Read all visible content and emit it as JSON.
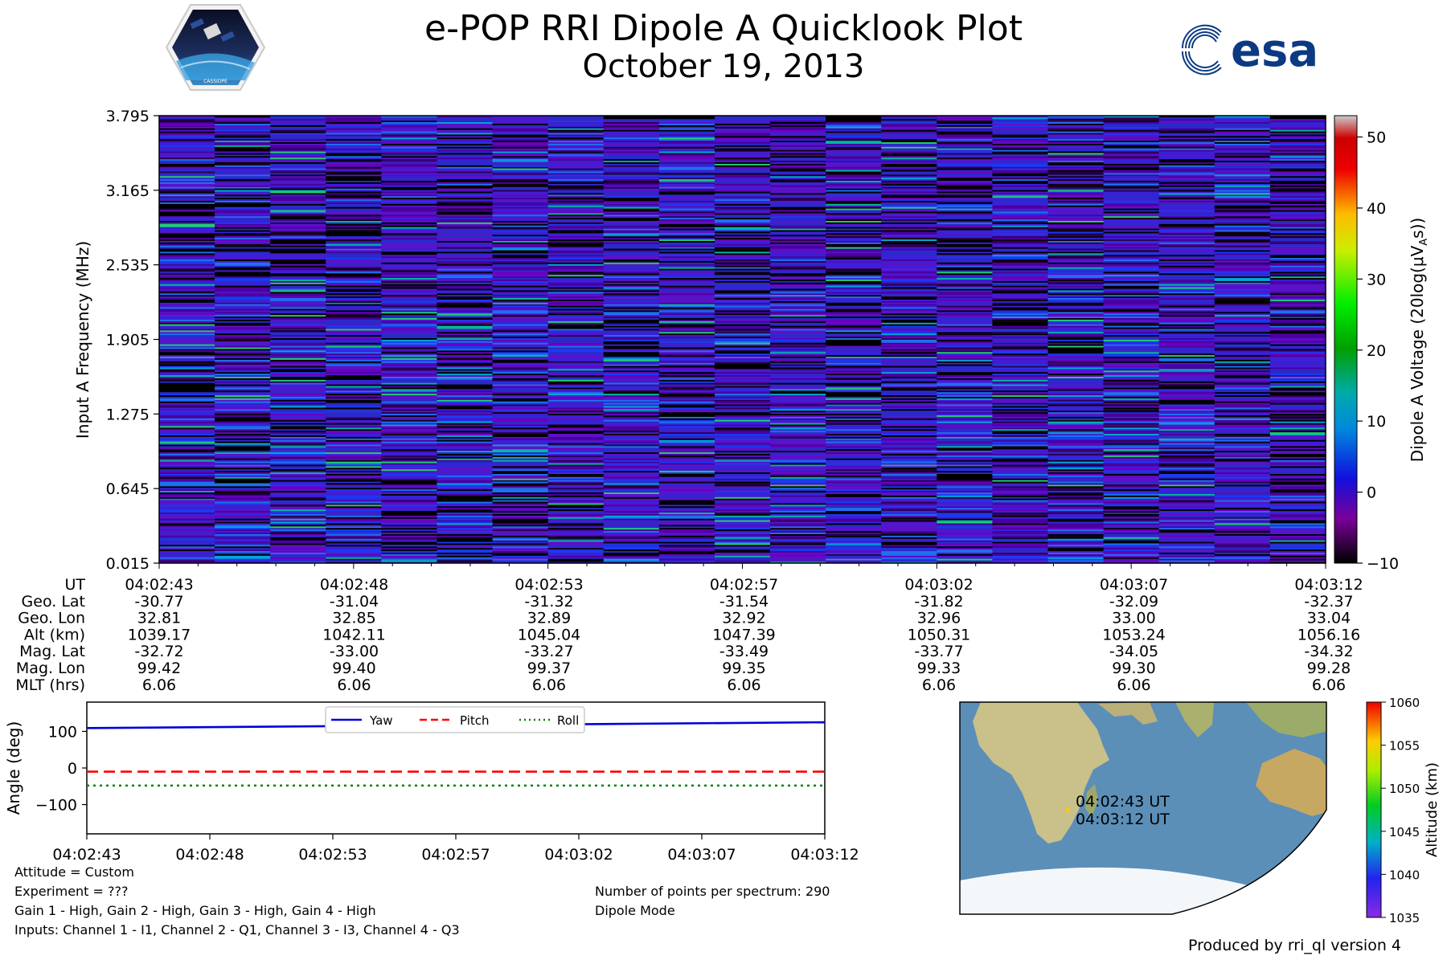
{
  "header": {
    "title": "e-POP RRI Dipole A Quicklook Plot",
    "date": "October 19, 2013",
    "left_logo_text": "CASSIOPE",
    "right_logo_text": "esa"
  },
  "chart_data": [
    {
      "type": "heatmap",
      "ylabel": "Input A Frequency (MHz)",
      "yticks": [
        "0.015",
        "0.645",
        "1.275",
        "1.905",
        "2.535",
        "3.165",
        "3.795"
      ],
      "ylim": [
        0.015,
        3.795
      ],
      "points_per_spectrum": 290,
      "colorbar": {
        "label": "Dipole A Voltage (20log(μV",
        "label_sub": "A",
        "label_end": "s))",
        "ticks": [
          "−10",
          "0",
          "10",
          "20",
          "30",
          "40",
          "50"
        ],
        "range": [
          -10,
          53
        ],
        "colormap": "nipy_spectral"
      }
    },
    {
      "type": "table",
      "row_labels": [
        "UT",
        "Geo. Lat",
        "Geo. Lon",
        "Alt (km)",
        "Mag. Lat",
        "Mag. Lon",
        "MLT (hrs)"
      ],
      "columns": [
        [
          "04:02:43",
          "-30.77",
          "32.81",
          "1039.17",
          "-32.72",
          "99.42",
          "6.06"
        ],
        [
          "04:02:48",
          "-31.04",
          "32.85",
          "1042.11",
          "-33.00",
          "99.40",
          "6.06"
        ],
        [
          "04:02:53",
          "-31.32",
          "32.89",
          "1045.04",
          "-33.27",
          "99.37",
          "6.06"
        ],
        [
          "04:02:57",
          "-31.54",
          "32.92",
          "1047.39",
          "-33.49",
          "99.35",
          "6.06"
        ],
        [
          "04:03:02",
          "-31.82",
          "32.96",
          "1050.31",
          "-33.77",
          "99.33",
          "6.06"
        ],
        [
          "04:03:07",
          "-32.09",
          "33.00",
          "1053.24",
          "-34.05",
          "99.30",
          "6.06"
        ],
        [
          "04:03:12",
          "-32.37",
          "33.04",
          "1056.16",
          "-34.32",
          "99.28",
          "6.06"
        ]
      ]
    },
    {
      "type": "line",
      "ylabel": "Angle (deg)",
      "ylim": [
        -180,
        180
      ],
      "yticks": [
        "100",
        "0",
        "−100"
      ],
      "ytick_values": [
        100,
        0,
        -100
      ],
      "xticks": [
        "04:02:43",
        "04:02:48",
        "04:02:53",
        "04:02:57",
        "04:03:02",
        "04:03:07",
        "04:03:12"
      ],
      "legend_position": "top-center",
      "series": [
        {
          "name": "Yaw",
          "color": "#0000dd",
          "style": "solid",
          "values": [
            109,
            125
          ]
        },
        {
          "name": "Pitch",
          "color": "#ff0000",
          "style": "dashed",
          "values": [
            -10,
            -10
          ]
        },
        {
          "name": "Roll",
          "color": "#008000",
          "style": "dotted",
          "values": [
            -48,
            -48
          ]
        }
      ]
    },
    {
      "type": "scatter",
      "annotations": [
        "04:02:43 UT",
        "04:03:12 UT"
      ],
      "colorbar": {
        "label": "Altitude (km)",
        "ticks": [
          "1060",
          "1055",
          "1050",
          "1045",
          "1040",
          "1035"
        ],
        "range": [
          1035,
          1060
        ]
      }
    }
  ],
  "notes": {
    "attitude": "Attitude = Custom",
    "experiment": "Experiment = ???",
    "gains": "Gain 1 - High, Gain 2 - High, Gain 3 - High, Gain 4 - High",
    "inputs": "Inputs: Channel 1 - I1, Channel 2 - Q1, Channel 3 - I3, Channel 4 - Q3",
    "points": "Number of points per spectrum: 290",
    "mode": "Dipole Mode",
    "produced_by": "Produced by rri_ql version 4"
  },
  "colors": {
    "yaw": "#0000dd",
    "pitch": "#ff0000",
    "roll": "#008000",
    "ocean": "#5b8fb8",
    "land": "#c9c08a",
    "esa_blue": "#0b3a82"
  }
}
